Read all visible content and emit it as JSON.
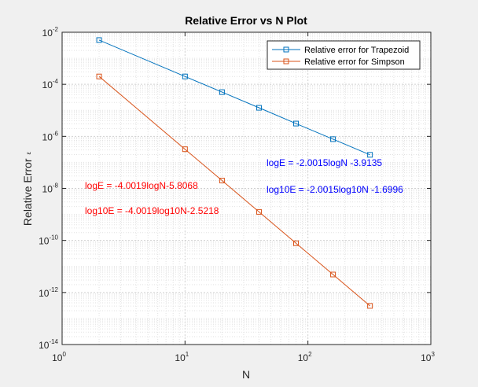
{
  "colors": {
    "background": "#f0f0f0",
    "plot_area": "#ffffff",
    "axis": "#262626",
    "grid": "#d9d9d9",
    "trapezoid": "#0072bd",
    "simpson": "#d95319",
    "annotation_blue": "#0000ff",
    "annotation_red": "#ff0000"
  },
  "chart_data": {
    "type": "line",
    "title": "Relative Error vs N Plot",
    "xlabel": "N",
    "ylabel": "Relative Error",
    "ylabel_symbol": "ε",
    "xscale": "log",
    "yscale": "log",
    "xlim": [
      1,
      1000
    ],
    "ylim": [
      1e-14,
      0.01
    ],
    "x_ticks": [
      {
        "base": "10",
        "exp": "0",
        "value": 1
      },
      {
        "base": "10",
        "exp": "1",
        "value": 10
      },
      {
        "base": "10",
        "exp": "2",
        "value": 100
      },
      {
        "base": "10",
        "exp": "3",
        "value": 1000
      }
    ],
    "y_ticks": [
      {
        "base": "10",
        "exp": "-2",
        "value": 0.01
      },
      {
        "base": "10",
        "exp": "-4",
        "value": 0.0001
      },
      {
        "base": "10",
        "exp": "-6",
        "value": 1e-06
      },
      {
        "base": "10",
        "exp": "-8",
        "value": 1e-08
      },
      {
        "base": "10",
        "exp": "-10",
        "value": 1e-10
      },
      {
        "base": "10",
        "exp": "-12",
        "value": 1e-12
      },
      {
        "base": "10",
        "exp": "-14",
        "value": 1e-14
      }
    ],
    "grid": "on (major and minor, dotted)",
    "legend_location": "top-right",
    "x": [
      2,
      10,
      20,
      40,
      80,
      160,
      320
    ],
    "series": [
      {
        "name": "Relative error for Trapezoid",
        "color": "#0072bd",
        "marker": "square",
        "values": [
          0.005,
          0.0002,
          5e-05,
          1.25e-05,
          3.1e-06,
          7.8e-07,
          1.95e-07
        ]
      },
      {
        "name": "Relative error for Simpson",
        "color": "#d95319",
        "marker": "square",
        "values": [
          0.0002,
          3.2e-07,
          2e-08,
          1.25e-09,
          7.8e-11,
          4.9e-12,
          3.05e-13
        ]
      }
    ],
    "annotations": [
      {
        "text": "logE = -2.0015logN -3.9135",
        "color": "#0000ff"
      },
      {
        "text": "log10E = -2.0015log10N -1.6996",
        "color": "#0000ff"
      },
      {
        "text": "logE = -4.0019logN-5.8068",
        "color": "#ff0000"
      },
      {
        "text": "log10E = -4.0019log10N-2.5218",
        "color": "#ff0000"
      }
    ]
  }
}
